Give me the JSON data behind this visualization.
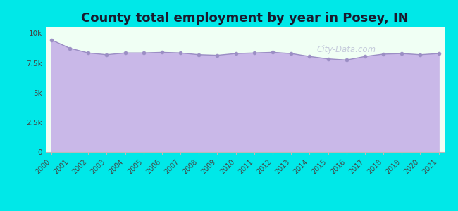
{
  "title": "County total employment by year in Posey, IN",
  "title_fontsize": 13,
  "title_fontweight": "bold",
  "title_color": "#1a1a2e",
  "years": [
    2000,
    2001,
    2002,
    2003,
    2004,
    2005,
    2006,
    2007,
    2008,
    2009,
    2010,
    2011,
    2012,
    2013,
    2014,
    2015,
    2016,
    2017,
    2018,
    2019,
    2020,
    2021
  ],
  "values": [
    9450,
    8750,
    8350,
    8200,
    8350,
    8350,
    8400,
    8350,
    8200,
    8150,
    8300,
    8350,
    8400,
    8300,
    8050,
    7850,
    7750,
    8050,
    8250,
    8300,
    8200,
    8300
  ],
  "line_color": "#9b8ec4",
  "fill_color": "#c9b8e8",
  "fill_alpha": 1.0,
  "marker_color": "#9b8ec4",
  "marker_size": 3.5,
  "background_outer": "#00e8e8",
  "background_plot": "#f0fff4",
  "ylim": [
    0,
    10500
  ],
  "yticks": [
    0,
    2500,
    5000,
    7500,
    10000
  ],
  "ytick_labels": [
    "0",
    "2.5k",
    "5k",
    "7.5k",
    "10k"
  ],
  "watermark": "City-Data.com"
}
